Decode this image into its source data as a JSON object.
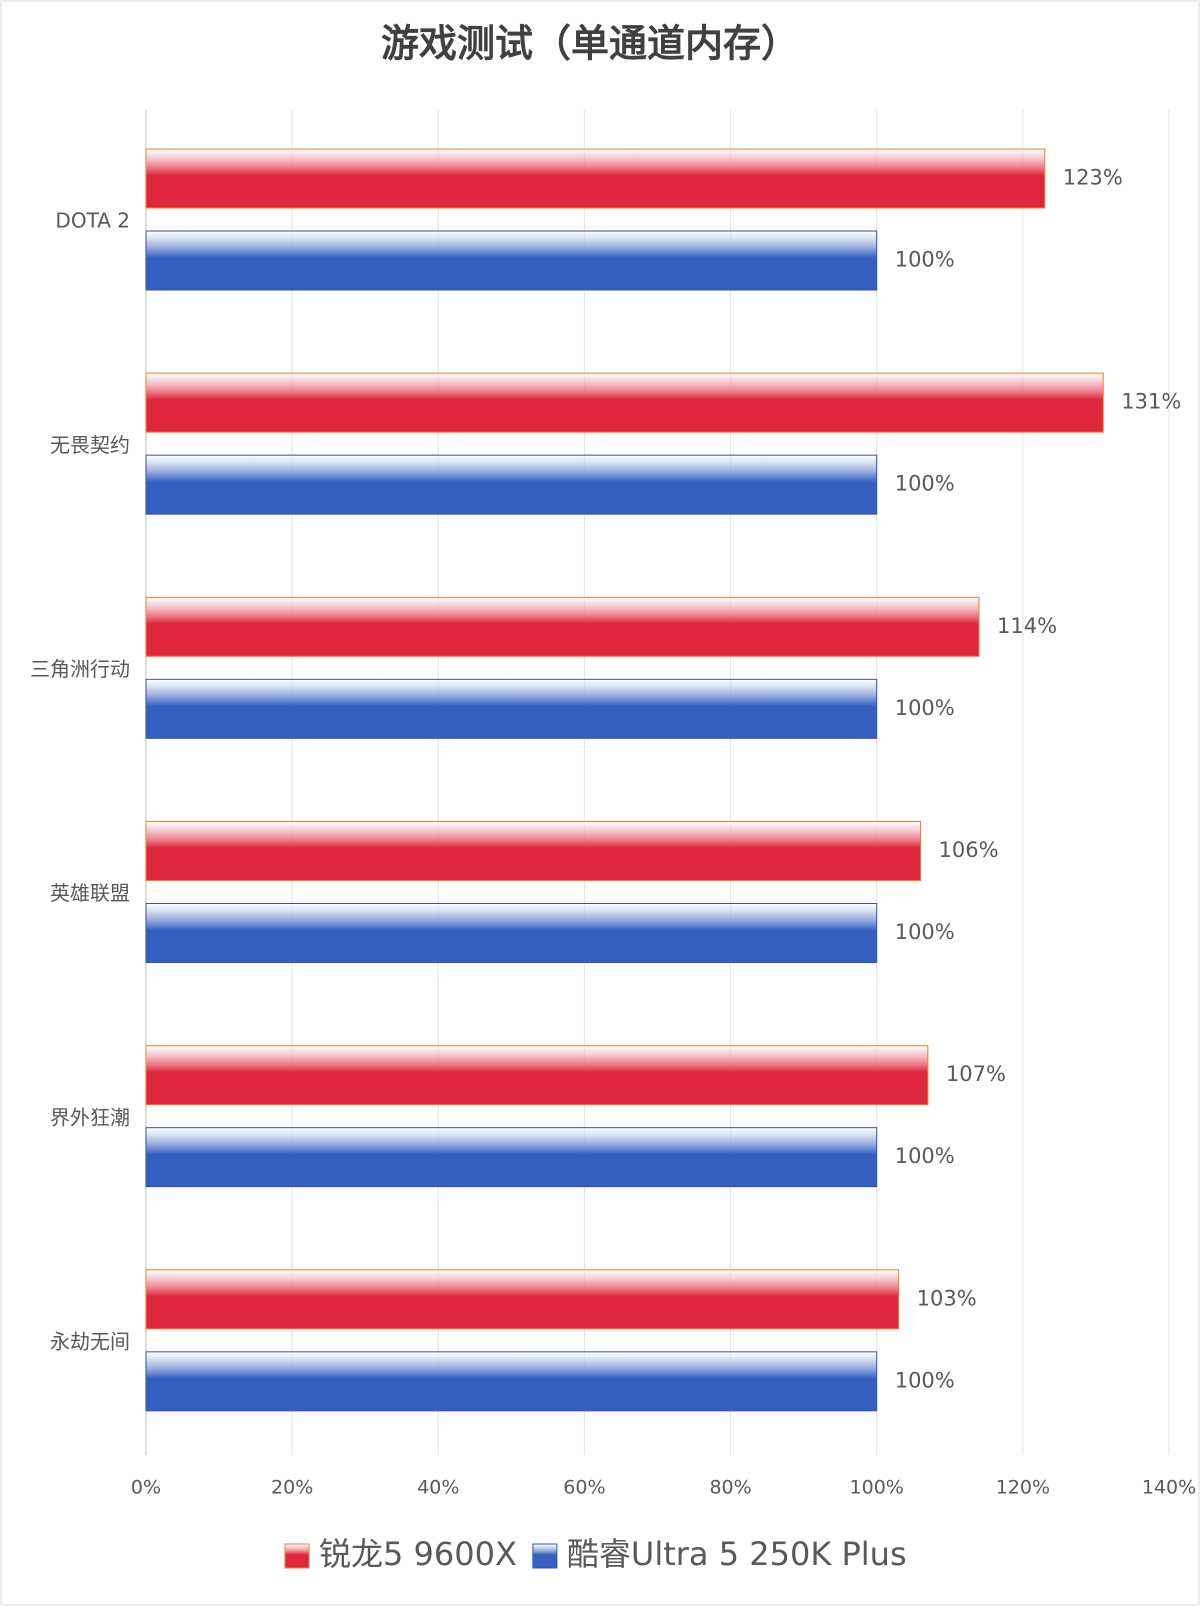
{
  "chart_data": {
    "type": "barh",
    "title": "游戏测试（单通道内存）",
    "categories": [
      "DOTA 2",
      "无畏契约",
      "三角洲行动",
      "英雄联盟",
      "界外狂潮",
      "永劫无间"
    ],
    "series": [
      {
        "name": "锐龙5 9600X",
        "color": "#e0263c",
        "values": [
          123,
          131,
          114,
          106,
          107,
          103
        ],
        "value_labels": [
          "123%",
          "131%",
          "114%",
          "106%",
          "107%",
          "103%"
        ]
      },
      {
        "name": "酷睿Ultra 5 250K Plus",
        "color": "#3560c2",
        "values": [
          100,
          100,
          100,
          100,
          100,
          100
        ],
        "value_labels": [
          "100%",
          "100%",
          "100%",
          "100%",
          "100%",
          "100%"
        ]
      }
    ],
    "xlim": [
      0,
      140
    ],
    "xticks": [
      {
        "value": 0,
        "label": "0%"
      },
      {
        "value": 20,
        "label": "20%"
      },
      {
        "value": 40,
        "label": "40%"
      },
      {
        "value": 60,
        "label": "60%"
      },
      {
        "value": 80,
        "label": "80%"
      },
      {
        "value": 100,
        "label": "100%"
      },
      {
        "value": 120,
        "label": "120%"
      },
      {
        "value": 140,
        "label": "140%"
      }
    ],
    "grid": true,
    "legend": "bottom"
  }
}
